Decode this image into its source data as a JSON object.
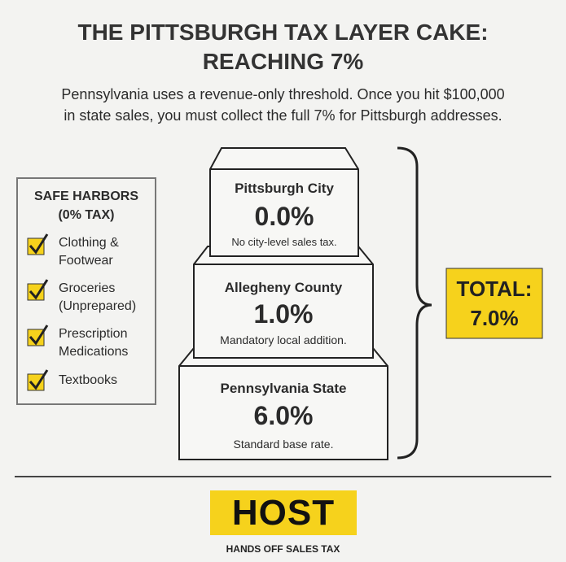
{
  "header": {
    "title": [
      "THE PITTSBURGH TAX LAYER CAKE:",
      "REACHING 7%"
    ],
    "subtitle": [
      "Pennsylvania uses a revenue-only threshold. Once you hit $100,000",
      "in state sales, you must collect the full 7% for Pittsburgh addresses."
    ]
  },
  "safe_harbors": {
    "title": [
      "SAFE HARBORS",
      "(0% TAX)"
    ],
    "items": [
      [
        "Clothing &",
        "Footwear"
      ],
      [
        "Groceries",
        "(Unprepared)"
      ],
      [
        "Prescription",
        "Medications"
      ],
      [
        "Textbooks"
      ]
    ]
  },
  "layers": [
    {
      "name": "Pittsburgh City",
      "rate": "0.0%",
      "note": "No city-level sales tax."
    },
    {
      "name": "Allegheny County",
      "rate": "1.0%",
      "note": "Mandatory local addition."
    },
    {
      "name": "Pennsylvania State",
      "rate": "6.0%",
      "note": "Standard base rate."
    }
  ],
  "total": {
    "label": "TOTAL:",
    "rate": "7.0%"
  },
  "logo": {
    "name": "HOST",
    "tagline": "HANDS OFF SALES TAX"
  }
}
